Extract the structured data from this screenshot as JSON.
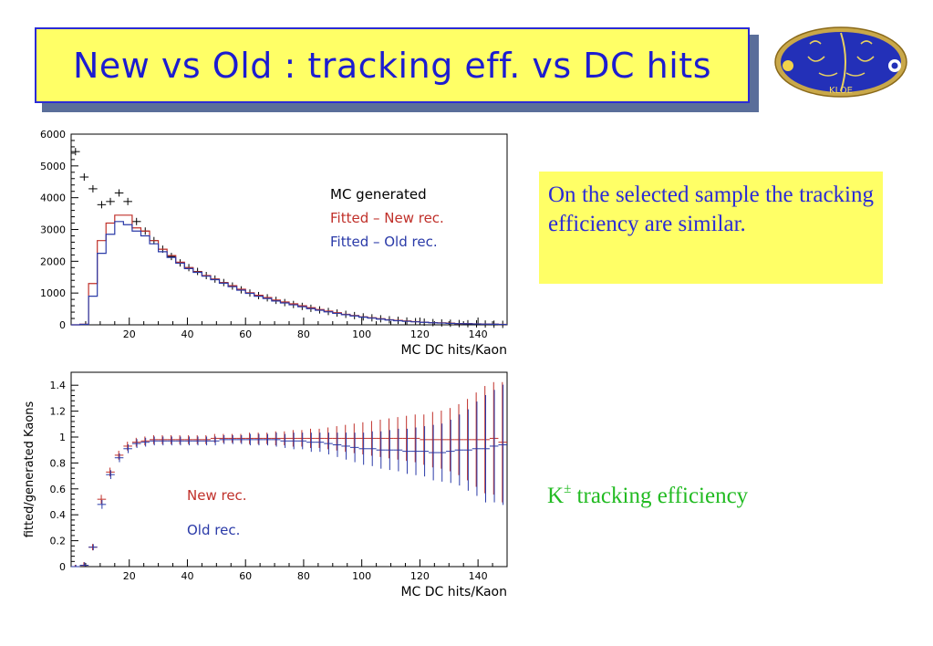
{
  "slide": {
    "title": "New vs Old : tracking eff. vs DC hits",
    "note": "On the selected sample the tracking efficiency are similar.",
    "caption_main": "K",
    "caption_sup": "±",
    "caption_rest": " tracking efficiency",
    "logo_text": "KLOE",
    "colors": {
      "title_text": "#1c1cd0",
      "title_bg": "#ffff66",
      "note_text": "#2b2bd6",
      "caption_text": "#22bb22",
      "new_rec": "#c0302a",
      "old_rec": "#2a3aa8",
      "mc": "#000000"
    }
  },
  "chart_data": [
    {
      "type": "line",
      "title": "",
      "xlabel": "MC DC hits/Kaon",
      "ylabel": "",
      "xlim": [
        0,
        150
      ],
      "ylim": [
        0,
        6000
      ],
      "xticks": [
        20,
        40,
        60,
        80,
        100,
        120,
        140
      ],
      "yticks": [
        0,
        1000,
        2000,
        3000,
        4000,
        5000,
        6000
      ],
      "legend": [
        "MC generated",
        "Fitted – New rec.",
        "Fitted – Old rec."
      ],
      "legend_position": "top-right",
      "bin_width": 3,
      "x": [
        1.5,
        4.5,
        7.5,
        10.5,
        13.5,
        16.5,
        19.5,
        22.5,
        25.5,
        28.5,
        31.5,
        34.5,
        37.5,
        40.5,
        43.5,
        46.5,
        49.5,
        52.5,
        55.5,
        58.5,
        61.5,
        64.5,
        67.5,
        70.5,
        73.5,
        76.5,
        79.5,
        82.5,
        85.5,
        88.5,
        91.5,
        94.5,
        97.5,
        100.5,
        103.5,
        106.5,
        109.5,
        112.5,
        115.5,
        118.5,
        121.5,
        124.5,
        127.5,
        130.5,
        133.5,
        136.5,
        139.5,
        142.5,
        145.5,
        148.5
      ],
      "series": [
        {
          "name": "MC generated",
          "style": "markers",
          "color": "#000000",
          "values": [
            5450,
            4650,
            4280,
            3780,
            3880,
            4150,
            3880,
            3250,
            2950,
            2650,
            2380,
            2150,
            1950,
            1800,
            1680,
            1550,
            1440,
            1330,
            1220,
            1100,
            1000,
            920,
            850,
            770,
            700,
            640,
            580,
            520,
            470,
            420,
            370,
            330,
            290,
            250,
            220,
            190,
            160,
            140,
            120,
            100,
            85,
            70,
            60,
            50,
            40,
            35,
            30,
            25,
            20,
            15
          ]
        },
        {
          "name": "Fitted – New rec.",
          "style": "histogram",
          "color": "#c0302a",
          "values": [
            0,
            20,
            1300,
            2650,
            3200,
            3450,
            3450,
            3050,
            2950,
            2650,
            2380,
            2180,
            1970,
            1800,
            1670,
            1550,
            1440,
            1330,
            1230,
            1120,
            1010,
            930,
            860,
            780,
            720,
            660,
            600,
            540,
            480,
            430,
            380,
            330,
            290,
            250,
            220,
            190,
            160,
            140,
            120,
            100,
            85,
            70,
            60,
            50,
            40,
            35,
            30,
            25,
            20,
            15
          ]
        },
        {
          "name": "Fitted – Old rec.",
          "style": "histogram",
          "color": "#2a3aa8",
          "values": [
            0,
            15,
            900,
            2250,
            2850,
            3250,
            3150,
            2950,
            2800,
            2550,
            2300,
            2120,
            1940,
            1770,
            1650,
            1530,
            1420,
            1310,
            1200,
            1090,
            990,
            900,
            830,
            750,
            690,
            630,
            570,
            510,
            460,
            410,
            360,
            320,
            280,
            240,
            210,
            180,
            150,
            130,
            110,
            95,
            80,
            65,
            55,
            45,
            38,
            32,
            27,
            22,
            18,
            12
          ]
        }
      ]
    },
    {
      "type": "scatter",
      "title": "",
      "xlabel": "MC DC hits/Kaon",
      "ylabel": "fitted/generated Kaons",
      "xlim": [
        0,
        150
      ],
      "ylim": [
        0,
        1.5
      ],
      "xticks": [
        20,
        40,
        60,
        80,
        100,
        120,
        140
      ],
      "yticks": [
        0,
        0.2,
        0.4,
        0.6,
        0.8,
        1,
        1.2,
        1.4
      ],
      "ytick_labels": [
        "0",
        "0.2",
        "0.4",
        "0.6",
        "0.8",
        "1",
        "1.2",
        "1.4"
      ],
      "legend": [
        "New rec.",
        "Old rec."
      ],
      "legend_position": "middle-left",
      "x": [
        1.5,
        4.5,
        7.5,
        10.5,
        13.5,
        16.5,
        19.5,
        22.5,
        25.5,
        28.5,
        31.5,
        34.5,
        37.5,
        40.5,
        43.5,
        46.5,
        49.5,
        52.5,
        55.5,
        58.5,
        61.5,
        64.5,
        67.5,
        70.5,
        73.5,
        76.5,
        79.5,
        82.5,
        85.5,
        88.5,
        91.5,
        94.5,
        97.5,
        100.5,
        103.5,
        106.5,
        109.5,
        112.5,
        115.5,
        118.5,
        121.5,
        124.5,
        127.5,
        130.5,
        133.5,
        136.5,
        139.5,
        142.5,
        145.5,
        148.5
      ],
      "series": [
        {
          "name": "New rec.",
          "color": "#c0302a",
          "values": [
            0,
            0.01,
            0.15,
            0.52,
            0.73,
            0.86,
            0.93,
            0.96,
            0.97,
            0.98,
            0.98,
            0.98,
            0.98,
            0.98,
            0.98,
            0.98,
            0.99,
            0.99,
            0.99,
            0.99,
            0.99,
            0.99,
            0.99,
            0.99,
            0.99,
            0.99,
            0.99,
            0.99,
            0.99,
            0.99,
            0.99,
            0.99,
            0.99,
            0.99,
            0.99,
            0.99,
            0.99,
            0.99,
            0.99,
            0.99,
            0.98,
            0.98,
            0.98,
            0.98,
            0.98,
            0.98,
            0.98,
            0.98,
            0.99,
            0.96
          ],
          "errors": [
            0,
            0.01,
            0.01,
            0.02,
            0.02,
            0.02,
            0.02,
            0.02,
            0.02,
            0.02,
            0.02,
            0.02,
            0.02,
            0.02,
            0.02,
            0.02,
            0.02,
            0.02,
            0.02,
            0.02,
            0.03,
            0.03,
            0.03,
            0.04,
            0.04,
            0.05,
            0.05,
            0.06,
            0.06,
            0.07,
            0.08,
            0.09,
            0.1,
            0.11,
            0.12,
            0.13,
            0.14,
            0.15,
            0.16,
            0.17,
            0.18,
            0.2,
            0.21,
            0.23,
            0.26,
            0.3,
            0.35,
            0.4,
            0.42,
            0.45
          ]
        },
        {
          "name": "Old rec.",
          "color": "#2a3aa8",
          "values": [
            0,
            0.01,
            0.15,
            0.48,
            0.71,
            0.84,
            0.91,
            0.95,
            0.96,
            0.97,
            0.97,
            0.97,
            0.97,
            0.97,
            0.97,
            0.97,
            0.97,
            0.98,
            0.98,
            0.98,
            0.98,
            0.98,
            0.98,
            0.98,
            0.97,
            0.97,
            0.97,
            0.96,
            0.96,
            0.95,
            0.94,
            0.93,
            0.92,
            0.91,
            0.91,
            0.9,
            0.9,
            0.9,
            0.89,
            0.89,
            0.89,
            0.88,
            0.88,
            0.89,
            0.9,
            0.9,
            0.91,
            0.91,
            0.93,
            0.94
          ],
          "errors": [
            0,
            0.01,
            0.01,
            0.02,
            0.02,
            0.02,
            0.02,
            0.02,
            0.02,
            0.02,
            0.02,
            0.02,
            0.02,
            0.02,
            0.02,
            0.02,
            0.02,
            0.02,
            0.02,
            0.02,
            0.03,
            0.03,
            0.03,
            0.04,
            0.04,
            0.05,
            0.05,
            0.06,
            0.06,
            0.07,
            0.08,
            0.09,
            0.1,
            0.11,
            0.12,
            0.13,
            0.14,
            0.15,
            0.16,
            0.17,
            0.18,
            0.2,
            0.21,
            0.23,
            0.26,
            0.3,
            0.35,
            0.4,
            0.42,
            0.45
          ]
        }
      ]
    }
  ]
}
